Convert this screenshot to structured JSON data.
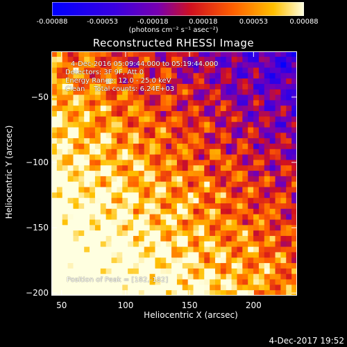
{
  "colorbar": {
    "ticks": [
      "-0.00088",
      "-0.00053",
      "-0.00018",
      "0.00018",
      "0.00053",
      "0.00088"
    ],
    "tick_values": [
      -0.00088,
      -0.00053,
      -0.00018,
      0.00018,
      0.00053,
      0.00088
    ],
    "unit_label": "(photons cm⁻² s⁻¹ asec⁻²)",
    "colors": [
      "#0000ff",
      "#3a00ff",
      "#8000c8",
      "#ff2020",
      "#ff8800",
      "#ffff80"
    ]
  },
  "footer": {
    "timestamp": "4-Dec-2017 19:52"
  },
  "chart_data": {
    "type": "heatmap",
    "title": "Reconstructed RHESSI Image",
    "xlabel": "Heliocentric X (arcsec)",
    "ylabel": "Heliocentric Y (arcsec)",
    "xlim": [
      42,
      234
    ],
    "ylim": [
      -202,
      -15
    ],
    "xticks": [
      50,
      100,
      150,
      200
    ],
    "yticks": [
      -50,
      -100,
      -150,
      -200
    ],
    "xtick_labels": [
      "50",
      "100",
      "150",
      "200"
    ],
    "ytick_labels": [
      "−50",
      "−100",
      "−150",
      "−200"
    ],
    "value_range": [
      -0.00088,
      0.00088
    ],
    "colormap": "blue-purple-red-orange-yellow-white",
    "annotations": [
      "4-Dec-2016 05:09:44.000 to 05:19:44.000",
      "Detectors: 3F 9F, Att 0",
      "Energy Range: 12.0 - 25.0 keV",
      "Clean    Total counts: 6.24E+03"
    ],
    "peak_label": "Position of Peak = [182,-182]",
    "peak_position": [
      182,
      -182
    ]
  }
}
